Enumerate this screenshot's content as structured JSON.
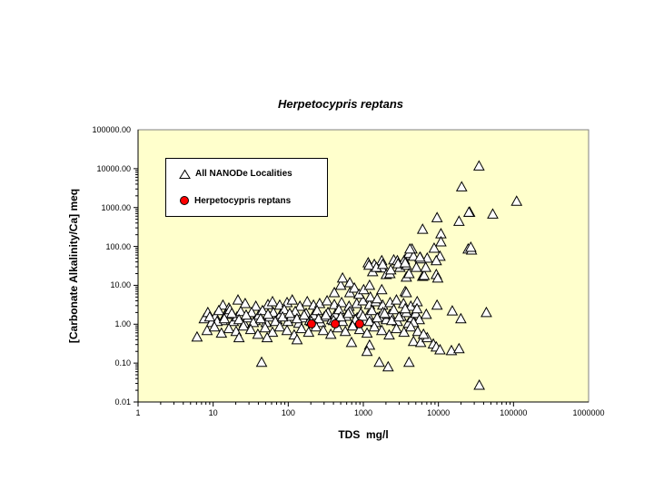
{
  "title": "Herpetocypris reptans",
  "chart_data": {
    "type": "scatter",
    "title": "Herpetocypris reptans",
    "plot_background": "#FFFFCC",
    "frame_color": "#808080",
    "axis_color": "#000000",
    "grid": "off",
    "legend_position": "top-left-inside",
    "x_axis": {
      "label": "TDS  mg/l",
      "scale": "log",
      "min": 1,
      "max": 1000000,
      "ticks": [
        "1",
        "10",
        "100",
        "1000",
        "10000",
        "100000",
        "1000000"
      ]
    },
    "y_axis": {
      "label": "[Carbonate Alkalinity/Ca] meq",
      "scale": "log",
      "min": 0.01,
      "max": 100000,
      "ticks": [
        "100000.00",
        "10000.00",
        "1000.00",
        "100.00",
        "10.00",
        "1.00",
        "0.10",
        "0.01"
      ]
    },
    "series": [
      {
        "name": "All NANODe Localities",
        "marker": "open-triangle",
        "stroke": "#000000",
        "fill": "#FFFFFF",
        "points": [
          [
            13.5,
            3.1
          ],
          [
            16.2,
            2.6
          ],
          [
            21.4,
            4.2
          ],
          [
            26.7,
            3.4
          ],
          [
            37,
            2.9
          ],
          [
            53.7,
            3.2
          ],
          [
            61.7,
            3.8
          ],
          [
            77,
            3.1
          ],
          [
            96.4,
            3.6
          ],
          [
            113,
            4.2
          ],
          [
            143,
            2.9
          ],
          [
            179,
            3.8
          ],
          [
            217,
            3.1
          ],
          [
            262,
            3.4
          ],
          [
            329,
            4.0
          ],
          [
            411,
            3.2
          ],
          [
            514,
            3.6
          ],
          [
            645,
            2.9
          ],
          [
            816,
            3.4
          ],
          [
            990,
            4.0
          ],
          [
            1210,
            3.2
          ],
          [
            1460,
            3.8
          ],
          [
            1810,
            3.1
          ],
          [
            2270,
            3.6
          ],
          [
            2760,
            4.2
          ],
          [
            3430,
            3.4
          ],
          [
            4290,
            2.9
          ],
          [
            5210,
            3.8
          ],
          [
            7.6,
            1.38
          ],
          [
            8.5,
            2.0
          ],
          [
            9.5,
            1.11
          ],
          [
            10.7,
            1.6
          ],
          [
            11.9,
            2.24
          ],
          [
            13.3,
            1.24
          ],
          [
            14.9,
            1.8
          ],
          [
            16.7,
            2.36
          ],
          [
            18.6,
            1.18
          ],
          [
            20.8,
            1.54
          ],
          [
            23.3,
            2.12
          ],
          [
            26,
            1.06
          ],
          [
            29.1,
            1.46
          ],
          [
            32.5,
            2.0
          ],
          [
            36.3,
            1.24
          ],
          [
            40.6,
            1.71
          ],
          [
            45.4,
            2.24
          ],
          [
            50.7,
            1.11
          ],
          [
            56.7,
            1.54
          ],
          [
            63.4,
            2.0
          ],
          [
            71,
            1.31
          ],
          [
            79.3,
            1.8
          ],
          [
            88.6,
            2.36
          ],
          [
            99,
            1.18
          ],
          [
            110.7,
            1.6
          ],
          [
            124,
            2.12
          ],
          [
            138,
            1.06
          ],
          [
            155,
            1.46
          ],
          [
            173,
            1.9
          ],
          [
            193,
            1.24
          ],
          [
            217,
            1.71
          ],
          [
            242,
            2.24
          ],
          [
            271,
            1.11
          ],
          [
            302,
            1.54
          ],
          [
            338,
            2.0
          ],
          [
            379,
            1.31
          ],
          [
            423,
            1.8
          ],
          [
            473,
            2.36
          ],
          [
            529,
            1.18
          ],
          [
            591,
            1.6
          ],
          [
            662,
            2.12
          ],
          [
            740,
            1.06
          ],
          [
            827,
            1.46
          ],
          [
            925,
            1.9
          ],
          [
            1030,
            1.24
          ],
          [
            1160,
            1.71
          ],
          [
            1300,
            2.24
          ],
          [
            1460,
            1.11
          ],
          [
            1630,
            1.54
          ],
          [
            1820,
            2.0
          ],
          [
            2020,
            1.31
          ],
          [
            2260,
            1.8
          ],
          [
            2540,
            2.36
          ],
          [
            2840,
            1.18
          ],
          [
            3180,
            1.6
          ],
          [
            3560,
            2.12
          ],
          [
            3980,
            1.06
          ],
          [
            4450,
            1.46
          ],
          [
            4980,
            1.9
          ],
          [
            5570,
            1.31
          ],
          [
            9.0,
            1.54
          ],
          [
            11.3,
            1.18
          ],
          [
            14.1,
            1.38
          ],
          [
            17.7,
            1.9
          ],
          [
            22.1,
            1.31
          ],
          [
            27.5,
            1.71
          ],
          [
            34.3,
            1.11
          ],
          [
            42.9,
            1.38
          ],
          [
            53.7,
            1.8
          ],
          [
            67.2,
            1.18
          ],
          [
            84,
            1.54
          ],
          [
            104.6,
            1.9
          ],
          [
            130.7,
            1.38
          ],
          [
            163,
            1.71
          ],
          [
            203,
            1.18
          ],
          [
            254,
            1.38
          ],
          [
            317,
            1.71
          ],
          [
            401,
            1.24
          ],
          [
            500,
            1.54
          ],
          [
            630,
            1.9
          ],
          [
            784,
            1.31
          ],
          [
            987,
            1.6
          ],
          [
            1210,
            1.18
          ],
          [
            1530,
            1.46
          ],
          [
            1920,
            1.9
          ],
          [
            2390,
            1.24
          ],
          [
            2990,
            1.54
          ],
          [
            3740,
            2.0
          ],
          [
            4660,
            1.11
          ],
          [
            8.3,
            0.69
          ],
          [
            10.4,
            0.85
          ],
          [
            12.9,
            0.59
          ],
          [
            16.2,
            0.77
          ],
          [
            20.2,
            0.65
          ],
          [
            25.3,
            0.9
          ],
          [
            31.6,
            0.73
          ],
          [
            39.4,
            0.55
          ],
          [
            49.2,
            0.81
          ],
          [
            61.7,
            0.62
          ],
          [
            77,
            0.85
          ],
          [
            96.4,
            0.69
          ],
          [
            120,
            0.53
          ],
          [
            150,
            0.77
          ],
          [
            187,
            0.62
          ],
          [
            234,
            0.85
          ],
          [
            293,
            0.69
          ],
          [
            369,
            0.55
          ],
          [
            459,
            0.81
          ],
          [
            576,
            0.65
          ],
          [
            722,
            0.9
          ],
          [
            894,
            0.73
          ],
          [
            1120,
            0.59
          ],
          [
            1400,
            0.85
          ],
          [
            1760,
            0.69
          ],
          [
            2210,
            0.53
          ],
          [
            2760,
            0.77
          ],
          [
            3480,
            0.62
          ],
          [
            4290,
            0.85
          ],
          [
            5300,
            0.65
          ],
          [
            6.1,
            0.47
          ],
          [
            22.1,
            0.45
          ],
          [
            52.3,
            0.45
          ],
          [
            131,
            0.4
          ],
          [
            696,
            0.34
          ],
          [
            1210,
            0.29
          ],
          [
            1120,
            0.2
          ],
          [
            1630,
            0.105
          ],
          [
            2140,
            0.08
          ],
          [
            4060,
            0.105
          ],
          [
            4660,
            0.36
          ],
          [
            5810,
            0.34
          ],
          [
            8550,
            0.31
          ],
          [
            44.2,
            0.105
          ],
          [
            35000,
            0.027
          ],
          [
            9370,
            0.26
          ],
          [
            10500,
            0.22
          ],
          [
            14900,
            0.21
          ],
          [
            18800,
            0.235
          ],
          [
            7090,
            0.45
          ],
          [
            6330,
            0.55
          ],
          [
            411,
            6.5
          ],
          [
            501,
            10
          ],
          [
            529,
            15.4
          ],
          [
            661,
            11.7
          ],
          [
            661,
            6.5
          ],
          [
            760,
            8.5
          ],
          [
            875,
            5.9
          ],
          [
            1010,
            7.7
          ],
          [
            1160,
            38
          ],
          [
            1210,
            10
          ],
          [
            1240,
            5.0
          ],
          [
            1330,
            22.5
          ],
          [
            1400,
            34.5
          ],
          [
            1530,
            4.5
          ],
          [
            1760,
            7.7
          ],
          [
            1760,
            43
          ],
          [
            1760,
            28
          ],
          [
            2020,
            19
          ],
          [
            2260,
            20
          ],
          [
            2320,
            25
          ],
          [
            2540,
            45
          ],
          [
            2840,
            43
          ],
          [
            3070,
            29
          ],
          [
            3530,
            45
          ],
          [
            3610,
            6.9
          ],
          [
            3740,
            33
          ],
          [
            3740,
            16.3
          ],
          [
            4060,
            20
          ],
          [
            4290,
            59
          ],
          [
            4450,
            86
          ],
          [
            5080,
            29
          ],
          [
            5810,
            50
          ],
          [
            6160,
            17
          ],
          [
            6460,
            18
          ],
          [
            6770,
            29
          ],
          [
            7090,
            50
          ],
          [
            8770,
            90
          ],
          [
            9370,
            19
          ],
          [
            9800,
            15.4
          ],
          [
            10500,
            56
          ],
          [
            24900,
            86
          ],
          [
            1190,
            33
          ],
          [
            1490,
            29
          ],
          [
            1810,
            34.5
          ],
          [
            2900,
            36
          ],
          [
            3610,
            38
          ],
          [
            4060,
            66
          ],
          [
            4660,
            56
          ],
          [
            5810,
            48
          ],
          [
            9370,
            43
          ],
          [
            4170,
            86
          ],
          [
            5670,
            53
          ],
          [
            6160,
            276
          ],
          [
            10800,
            212
          ],
          [
            10800,
            131
          ],
          [
            27600,
            81
          ],
          [
            9590,
            550
          ],
          [
            18800,
            444
          ],
          [
            26100,
            757
          ],
          [
            52900,
            681
          ],
          [
            20400,
            3400
          ],
          [
            34700,
            11700
          ],
          [
            110000,
            1450
          ],
          [
            25500,
            757
          ],
          [
            3740,
            6.5
          ],
          [
            3610,
            2.5
          ],
          [
            5180,
            2.5
          ],
          [
            6890,
            1.8
          ],
          [
            9590,
            3.1
          ],
          [
            15300,
            2.2
          ],
          [
            19900,
            1.38
          ],
          [
            43500,
            2.0
          ],
          [
            27000,
            95
          ]
        ]
      },
      {
        "name": "Herpetocypris reptans",
        "marker": "filled-circle",
        "stroke": "#000000",
        "fill": "#FF0000",
        "points": [
          [
            204,
            1.02
          ],
          [
            421,
            1.02
          ],
          [
            892,
            1.02
          ]
        ]
      }
    ]
  }
}
